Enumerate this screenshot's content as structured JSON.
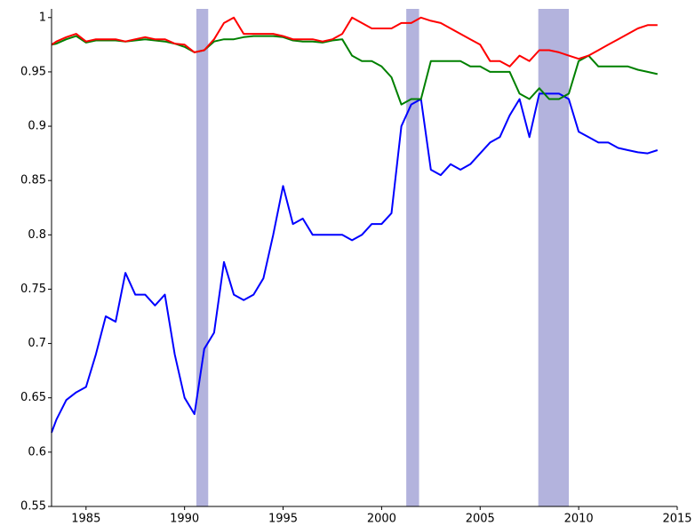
{
  "chart_data": {
    "type": "line",
    "x": [
      1983.25,
      1983.5,
      1984,
      1984.5,
      1985,
      1985.5,
      1986,
      1986.5,
      1987,
      1987.5,
      1988,
      1988.5,
      1989,
      1989.5,
      1990,
      1990.5,
      1991,
      1991.5,
      1992,
      1992.5,
      1993,
      1993.5,
      1994,
      1994.5,
      1995,
      1995.5,
      1996,
      1996.5,
      1997,
      1997.5,
      1998,
      1998.5,
      1999,
      1999.5,
      2000,
      2000.5,
      2001,
      2001.5,
      2002,
      2002.5,
      2003,
      2003.5,
      2004,
      2004.5,
      2005,
      2005.5,
      2006,
      2006.5,
      2007,
      2007.5,
      2008,
      2008.5,
      2009,
      2009.5,
      2010,
      2010.5,
      2011,
      2011.5,
      2012,
      2012.5,
      2013,
      2013.5,
      2014
    ],
    "series": [
      {
        "color": "#0000ff",
        "values": [
          0.618,
          0.63,
          0.648,
          0.655,
          0.66,
          0.69,
          0.725,
          0.72,
          0.765,
          0.745,
          0.745,
          0.735,
          0.745,
          0.69,
          0.65,
          0.635,
          0.695,
          0.71,
          0.775,
          0.745,
          0.74,
          0.745,
          0.76,
          0.8,
          0.845,
          0.81,
          0.815,
          0.8,
          0.8,
          0.8,
          0.8,
          0.795,
          0.8,
          0.81,
          0.81,
          0.82,
          0.9,
          0.92,
          0.925,
          0.86,
          0.855,
          0.865,
          0.86,
          0.865,
          0.875,
          0.885,
          0.89,
          0.91,
          0.925,
          0.89,
          0.93,
          0.93,
          0.93,
          0.925,
          0.895,
          0.89,
          0.885,
          0.885,
          0.88,
          0.878,
          0.876,
          0.875,
          0.878
        ]
      },
      {
        "color": "#008000",
        "values": [
          0.975,
          0.976,
          0.98,
          0.983,
          0.977,
          0.979,
          0.979,
          0.979,
          0.978,
          0.979,
          0.98,
          0.979,
          0.978,
          0.976,
          0.973,
          0.968,
          0.97,
          0.978,
          0.98,
          0.98,
          0.982,
          0.983,
          0.983,
          0.983,
          0.982,
          0.979,
          0.978,
          0.978,
          0.977,
          0.979,
          0.98,
          0.965,
          0.96,
          0.96,
          0.955,
          0.945,
          0.92,
          0.925,
          0.925,
          0.96,
          0.96,
          0.96,
          0.96,
          0.955,
          0.955,
          0.95,
          0.95,
          0.95,
          0.93,
          0.925,
          0.935,
          0.925,
          0.925,
          0.93,
          0.96,
          0.965,
          0.955,
          0.955,
          0.955,
          0.955,
          0.952,
          0.95,
          0.948
        ]
      },
      {
        "color": "#ff0000",
        "values": [
          0.975,
          0.978,
          0.982,
          0.985,
          0.978,
          0.98,
          0.98,
          0.98,
          0.978,
          0.98,
          0.982,
          0.98,
          0.98,
          0.976,
          0.975,
          0.968,
          0.97,
          0.98,
          0.995,
          1.0,
          0.985,
          0.985,
          0.985,
          0.985,
          0.983,
          0.98,
          0.98,
          0.98,
          0.978,
          0.98,
          0.985,
          1.0,
          0.995,
          0.99,
          0.99,
          0.99,
          0.995,
          0.995,
          1.0,
          0.997,
          0.995,
          0.99,
          0.985,
          0.98,
          0.975,
          0.96,
          0.96,
          0.955,
          0.965,
          0.96,
          0.97,
          0.97,
          0.968,
          0.965,
          0.962,
          0.965,
          0.97,
          0.975,
          0.98,
          0.985,
          0.99,
          0.993,
          0.993
        ]
      }
    ],
    "shaded_periods": [
      [
        1990.6,
        1991.2
      ],
      [
        2001.25,
        2001.9
      ],
      [
        2007.95,
        2009.5
      ]
    ],
    "shade_color": "#b3b3dd",
    "xlim": [
      1983.25,
      2015
    ],
    "xticks": [
      1985,
      1990,
      1995,
      2000,
      2005,
      2010,
      2015
    ],
    "ylim": [
      0.55,
      1.008
    ],
    "yticks": [
      0.55,
      0.6,
      0.65,
      0.7,
      0.75,
      0.8,
      0.85,
      0.9,
      0.95,
      1
    ]
  }
}
